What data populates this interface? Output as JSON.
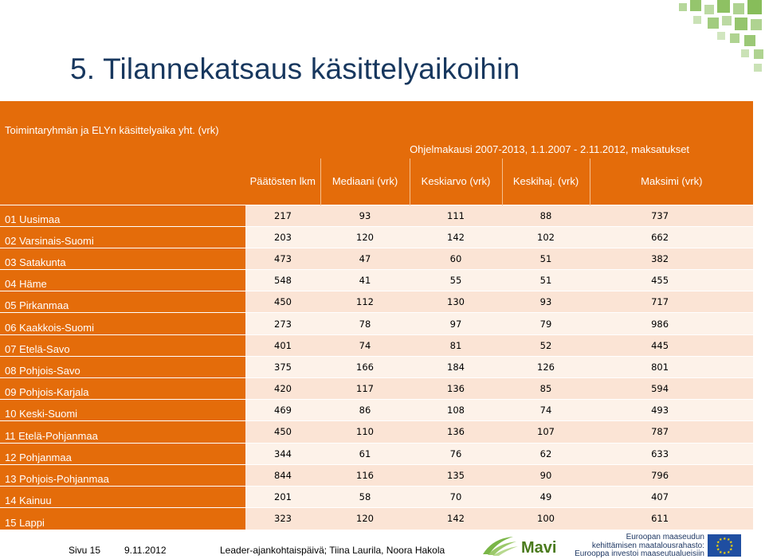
{
  "title": "5. Tilannekatsaus käsittelyaikoihin",
  "table": {
    "corner_label": "Toimintaryhmän ja ELYn käsittelyaika yht. (vrk)",
    "group_header": "Ohjelmakausi 2007-2013, 1.1.2007 - 2.11.2012, maksatukset",
    "columns": [
      "Päätösten lkm",
      "Mediaani (vrk)",
      "Keskiarvo (vrk)",
      "Keskihaj. (vrk)",
      "Maksimi (vrk)"
    ],
    "rows": [
      {
        "region": "01 Uusimaa",
        "values": [
          "217",
          "93",
          "111",
          "88",
          "737"
        ]
      },
      {
        "region": "02 Varsinais-Suomi",
        "values": [
          "203",
          "120",
          "142",
          "102",
          "662"
        ]
      },
      {
        "region": "03 Satakunta",
        "values": [
          "473",
          "47",
          "60",
          "51",
          "382"
        ]
      },
      {
        "region": "04 Häme",
        "values": [
          "548",
          "41",
          "55",
          "51",
          "455"
        ]
      },
      {
        "region": "05 Pirkanmaa",
        "values": [
          "450",
          "112",
          "130",
          "93",
          "717"
        ]
      },
      {
        "region": "06 Kaakkois-Suomi",
        "values": [
          "273",
          "78",
          "97",
          "79",
          "986"
        ]
      },
      {
        "region": "07 Etelä-Savo",
        "values": [
          "401",
          "74",
          "81",
          "52",
          "445"
        ]
      },
      {
        "region": "08 Pohjois-Savo",
        "values": [
          "375",
          "166",
          "184",
          "126",
          "801"
        ]
      },
      {
        "region": "09 Pohjois-Karjala",
        "values": [
          "420",
          "117",
          "136",
          "85",
          "594"
        ]
      },
      {
        "region": "10 Keski-Suomi",
        "values": [
          "469",
          "86",
          "108",
          "74",
          "493"
        ]
      },
      {
        "region": "11 Etelä-Pohjanmaa",
        "values": [
          "450",
          "110",
          "136",
          "107",
          "787"
        ]
      },
      {
        "region": "12 Pohjanmaa",
        "values": [
          "344",
          "61",
          "76",
          "62",
          "633"
        ]
      },
      {
        "region": "13 Pohjois-Pohjanmaa",
        "values": [
          "844",
          "116",
          "135",
          "90",
          "796"
        ]
      },
      {
        "region": "14 Kainuu",
        "values": [
          "201",
          "58",
          "70",
          "49",
          "407"
        ]
      },
      {
        "region": "15 Lappi",
        "values": [
          "323",
          "120",
          "142",
          "100",
          "611"
        ]
      }
    ]
  },
  "footer": {
    "page": "Sivu 15",
    "date": "9.11.2012",
    "event": "Leader-ajankohtaispäivä; Tiina Laurila, Noora Hakola",
    "logo_text": "Mavi",
    "eu_lines": [
      "Euroopan maaseudun",
      "kehittämisen maatalousrahasto:",
      "Eurooppa investoi maaseutualueisiin"
    ]
  },
  "colors": {
    "title": "#17375e",
    "header": "#e46c0a",
    "row_odd": "#fbe4d5",
    "row_even": "#fdf2e9",
    "accent_green": "#7ab648",
    "eu_blue": "#1f4ea1"
  },
  "icons": [
    "mavi-logo-icon",
    "eu-flag-icon"
  ]
}
